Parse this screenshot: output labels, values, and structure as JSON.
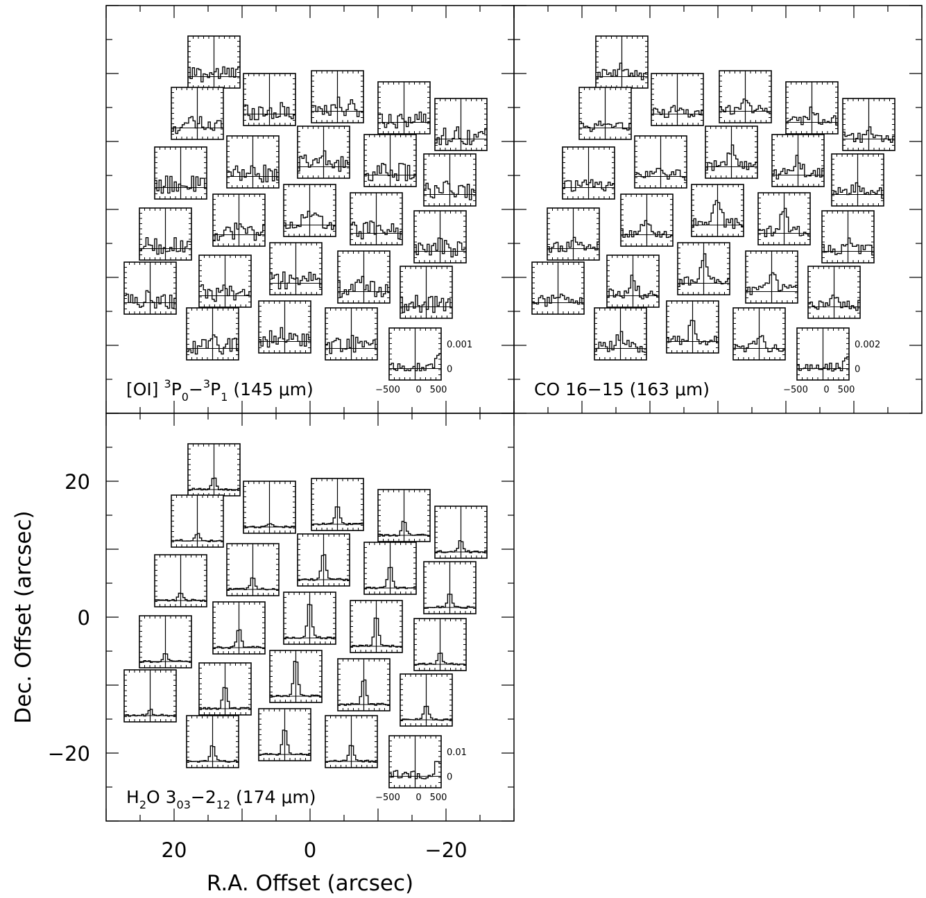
{
  "figure": {
    "xlabel": "R.A. Offset (arcsec)",
    "ylabel": "Dec. Offset (arcsec)",
    "x_ticks": [
      "20",
      "0",
      "−20"
    ],
    "y_ticks": [
      "20",
      "0",
      "−20"
    ]
  },
  "chart_data": [
    {
      "type": "line",
      "panel": "top-left",
      "line_label": {
        "pre": "[OI] ",
        "sup1": "3",
        "mid1": "P",
        "sub1": "0",
        "mid2": "−",
        "sup2": "3",
        "mid3": "P",
        "sub2": "1",
        "post": " (145 μm)"
      },
      "scale": {
        "flux_label": "0.001",
        "zero_label": "0",
        "flux_value": 0.001,
        "velocity_ticks": [
          "−500",
          "0",
          "500"
        ]
      },
      "spectra_character": "noise-dominated, weak emission",
      "xlim": [
        30,
        -30
      ],
      "ylim": [
        -30,
        30
      ]
    },
    {
      "type": "line",
      "panel": "top-right",
      "line_label": {
        "text": "CO 16−15 (163 μm)"
      },
      "scale": {
        "flux_label": "0.002",
        "zero_label": "0",
        "flux_value": 0.002,
        "velocity_ticks": [
          "−500",
          "0",
          "500"
        ]
      },
      "spectra_character": "moderate central peaks near systemic velocity",
      "xlim": [
        30,
        -30
      ],
      "ylim": [
        -30,
        30
      ]
    },
    {
      "type": "line",
      "panel": "bottom-left",
      "line_label": {
        "pre": "H",
        "sub1": "2",
        "mid1": "O 3",
        "sub2": "03",
        "mid2": "−2",
        "sub3": "12",
        "post": " (174 μm)"
      },
      "scale": {
        "flux_label": "0.01",
        "zero_label": "0",
        "flux_value": 0.01,
        "velocity_ticks": [
          "−500",
          "0",
          "500"
        ]
      },
      "spectra_character": "strong narrow peaks at the central spaxels",
      "xlim": [
        30,
        -30
      ],
      "ylim": [
        -30,
        30
      ]
    }
  ]
}
